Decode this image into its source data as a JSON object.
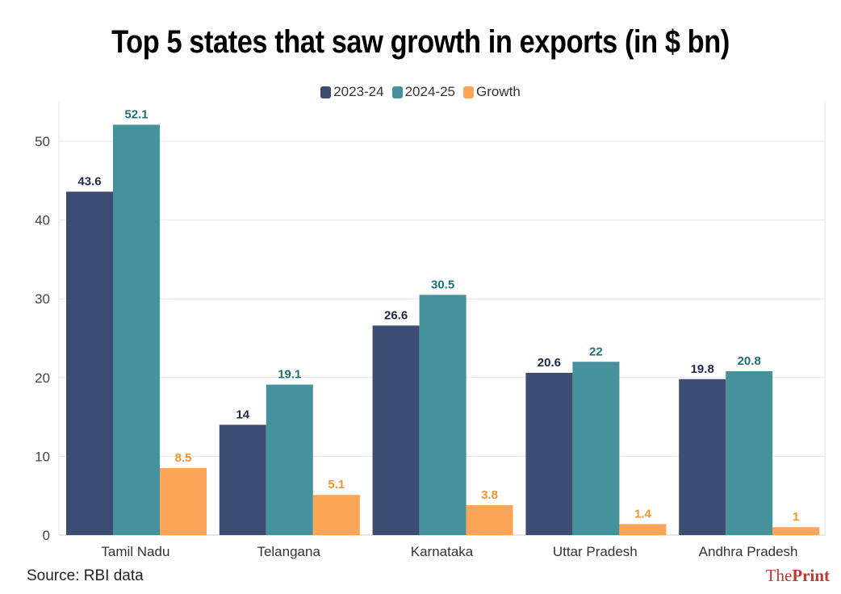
{
  "chart_data": {
    "type": "bar",
    "title": "Top 5 states that saw growth in exports (in $ bn)",
    "categories": [
      "Tamil Nadu",
      "Telangana",
      "Karnataka",
      "Uttar Pradesh",
      "Andhra Pradesh"
    ],
    "series": [
      {
        "name": "2023-24",
        "color": "#3d4c72",
        "label_color": "#1c2850",
        "values": [
          43.6,
          14,
          26.6,
          20.6,
          19.8
        ]
      },
      {
        "name": "2024-25",
        "color": "#45929c",
        "label_color": "#1f6e79",
        "values": [
          52.1,
          19.1,
          30.5,
          22,
          20.8
        ]
      },
      {
        "name": "Growth",
        "color": "#fca557",
        "label_color": "#f2922c",
        "values": [
          8.5,
          5.1,
          3.8,
          1.4,
          1
        ]
      }
    ],
    "ylim": [
      0,
      55
    ],
    "yticks": [
      0,
      10,
      20,
      30,
      40,
      50
    ],
    "xlabel": "",
    "ylabel": "",
    "grid": true,
    "legend": "top-center"
  },
  "source": "Source: RBI data",
  "brand": {
    "prefix": "The",
    "name": "Print"
  }
}
